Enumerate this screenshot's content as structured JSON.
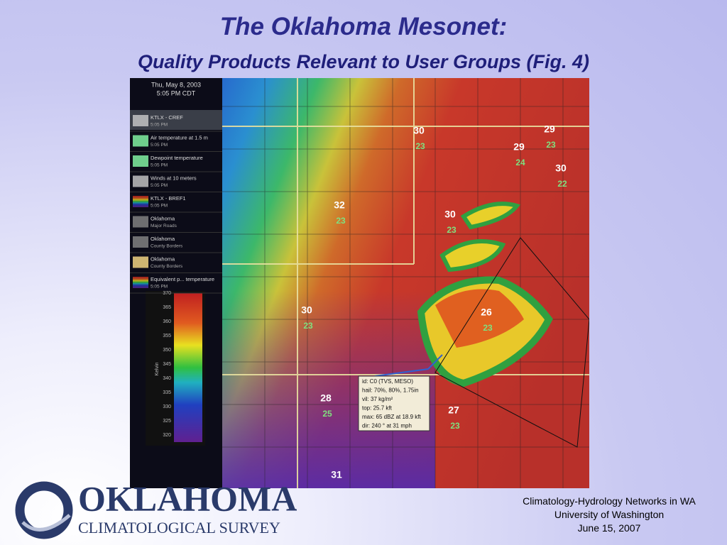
{
  "header": {
    "title": "The Oklahoma Mesonet:",
    "subtitle": "Quality Products Relevant to User Groups (Fig. 4)"
  },
  "sidebar": {
    "date": "Thu, May 8, 2003",
    "time": "5:05 PM CDT",
    "layers": [
      {
        "name": "KTLX - CREF",
        "sub": "5:05 PM"
      },
      {
        "name": "Air temperature at 1.5 m",
        "sub": "5:05 PM"
      },
      {
        "name": "Dewpoint temperature",
        "sub": "5:05 PM"
      },
      {
        "name": "Winds at 10 meters",
        "sub": "5:05 PM"
      },
      {
        "name": "KTLX - BREF1",
        "sub": "5:05 PM"
      },
      {
        "name": "Oklahoma",
        "sub": "Major Roads"
      },
      {
        "name": "Oklahoma",
        "sub": "County Borders"
      },
      {
        "name": "Oklahoma",
        "sub": "County Borders"
      },
      {
        "name": "Equivalent p... temperature",
        "sub": "5:05 PM"
      }
    ],
    "scale": {
      "label": "Kelvin",
      "ticks": [
        "370",
        "365",
        "360",
        "355",
        "350",
        "345",
        "340",
        "335",
        "330",
        "325",
        "320"
      ]
    }
  },
  "map": {
    "stations": [
      {
        "temp": "30",
        "dew": "23"
      },
      {
        "temp": "29",
        "dew": "23"
      },
      {
        "temp": "29",
        "dew": "24"
      },
      {
        "temp": "30",
        "dew": "22"
      },
      {
        "temp": "32",
        "dew": "23"
      },
      {
        "temp": "30",
        "dew": "23"
      },
      {
        "temp": "30",
        "dew": "23"
      },
      {
        "temp": "26",
        "dew": "23"
      },
      {
        "temp": "28",
        "dew": "25"
      },
      {
        "temp": "27",
        "dew": "23"
      },
      {
        "temp": "31"
      }
    ],
    "popup": [
      "id: C0 (TVS, MESO)",
      "hail: 70%, 80%, 1.75in",
      "vil: 37 kg/m²",
      "top: 25.7 kft",
      "max: 65 dBZ at 18.9 kft",
      "dir: 240 ° at 31 mph"
    ]
  },
  "logo": {
    "name": "OKLAHOMA",
    "sub": "CLIMATOLOGICAL SURVEY"
  },
  "footer": [
    "Climatology-Hydrology Networks in WA",
    "University of Washington",
    "June 15, 2007"
  ]
}
